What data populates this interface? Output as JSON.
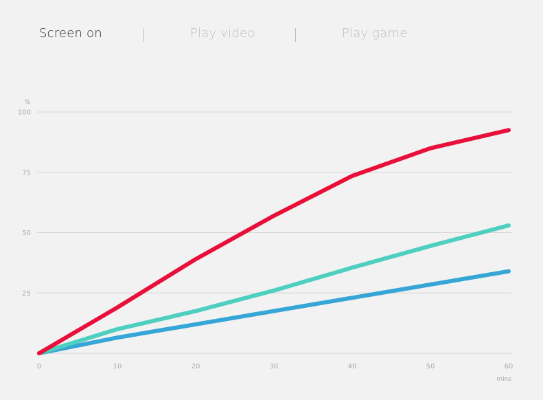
{
  "tabs": [
    {
      "label": "Screen on",
      "active": true
    },
    {
      "label": "Play video",
      "active": false
    },
    {
      "label": "Play game",
      "active": false
    }
  ],
  "colors": {
    "background": "#f2f2f2",
    "grid": "#d4d4d4",
    "axis_text": "#a9a9a9",
    "tab_active": "#2b2b2b",
    "tab_inactive": "#bdbdbd"
  },
  "chart_data": {
    "type": "line",
    "title": "",
    "xlabel": "mins",
    "ylabel": "%",
    "xlim": [
      0,
      60
    ],
    "ylim": [
      0,
      100
    ],
    "xticks": [
      0,
      10,
      20,
      30,
      40,
      50,
      60
    ],
    "yticks": [
      25,
      50,
      75,
      100
    ],
    "grid": true,
    "series": [
      {
        "color": "#e8103a",
        "x": [
          0,
          10,
          20,
          30,
          40,
          50,
          60
        ],
        "y": [
          0,
          19,
          39,
          57,
          73.5,
          85,
          92.5
        ]
      },
      {
        "color": "#4ecfc0",
        "x": [
          0,
          10,
          20,
          30,
          40,
          50,
          60
        ],
        "y": [
          0,
          10,
          17.5,
          26,
          35.5,
          44.5,
          53
        ]
      },
      {
        "color": "#36a6d6",
        "x": [
          0,
          10,
          20,
          30,
          40,
          50,
          60
        ],
        "y": [
          0,
          6.5,
          12,
          17.5,
          23,
          28.5,
          34
        ]
      }
    ]
  }
}
